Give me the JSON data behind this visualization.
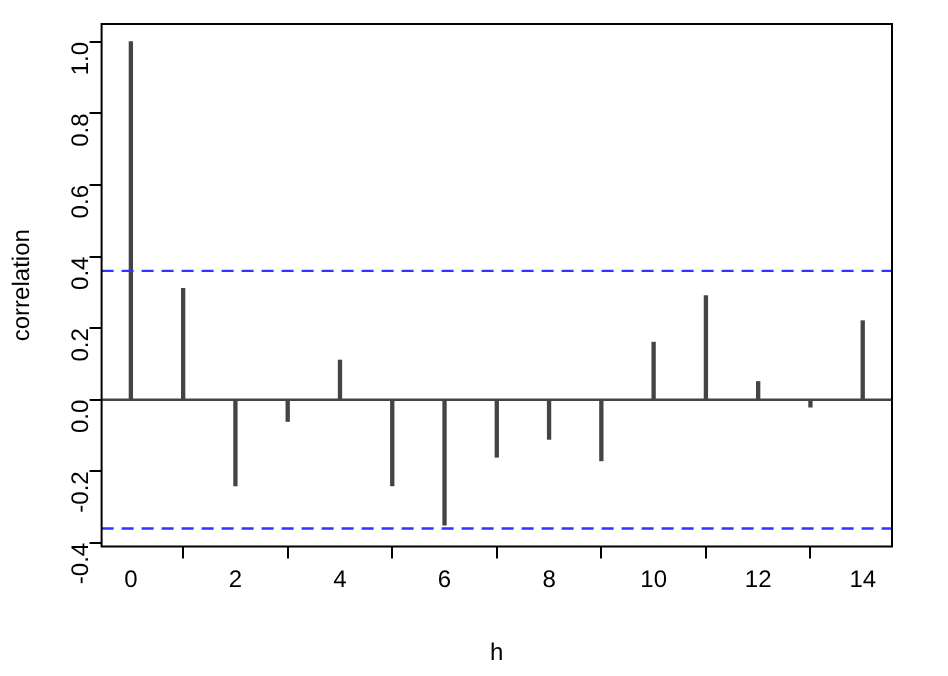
{
  "chart_data": {
    "type": "bar",
    "xlabel": "h",
    "ylabel": "correlation",
    "x": [
      0,
      1,
      2,
      3,
      4,
      5,
      6,
      7,
      8,
      9,
      10,
      11,
      12,
      13,
      14
    ],
    "values": [
      1.0,
      0.31,
      -0.24,
      -0.06,
      0.11,
      -0.24,
      -0.35,
      -0.16,
      -0.11,
      -0.17,
      0.16,
      0.29,
      0.05,
      -0.02,
      0.22
    ],
    "color": "#444444",
    "xlim": [
      -0.56,
      14.56
    ],
    "xticks": [
      0,
      2,
      4,
      6,
      8,
      10,
      12,
      14
    ],
    "ylim": [
      -0.41,
      1.05
    ],
    "yticks": [
      -0.4,
      -0.2,
      {
        "value": 0,
        "label": "0.0"
      },
      0.2,
      0.4,
      0.6,
      0.8,
      {
        "value": 1,
        "label": "1.0"
      }
    ],
    "ref_lines": [
      {
        "axis": "y",
        "value": 0,
        "color": "#444444",
        "line_style": "solid"
      },
      {
        "axis": "y",
        "value": 0.36,
        "color": "#3333ff",
        "line_style": "dashed"
      },
      {
        "axis": "y",
        "value": -0.36,
        "color": "#3333ff",
        "line_style": "dashed"
      }
    ],
    "grid": false,
    "legend": false
  }
}
